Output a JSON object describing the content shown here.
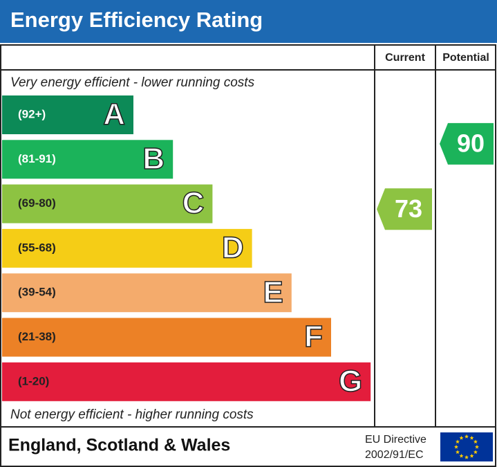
{
  "header": {
    "title": "Energy Efficiency Rating"
  },
  "columns": {
    "current": "Current",
    "potential": "Potential"
  },
  "top_note": "Very energy efficient - lower running costs",
  "bottom_note": "Not energy efficient - higher running costs",
  "bands": [
    {
      "range": "(92+)",
      "letter": "A",
      "color": "#0c8a57"
    },
    {
      "range": "(81-91)",
      "letter": "B",
      "color": "#1bb35a"
    },
    {
      "range": "(69-80)",
      "letter": "C",
      "color": "#8dc342"
    },
    {
      "range": "(55-68)",
      "letter": "D",
      "color": "#f5cd16"
    },
    {
      "range": "(39-54)",
      "letter": "E",
      "color": "#f4ab6c"
    },
    {
      "range": "(21-38)",
      "letter": "F",
      "color": "#ec8126"
    },
    {
      "range": "(1-20)",
      "letter": "G",
      "color": "#e31d3c"
    }
  ],
  "ratings": {
    "current": 73,
    "potential": 90
  },
  "footer": {
    "region": "England, Scotland & Wales",
    "directive": [
      "EU Directive",
      "2002/91/EC"
    ]
  }
}
